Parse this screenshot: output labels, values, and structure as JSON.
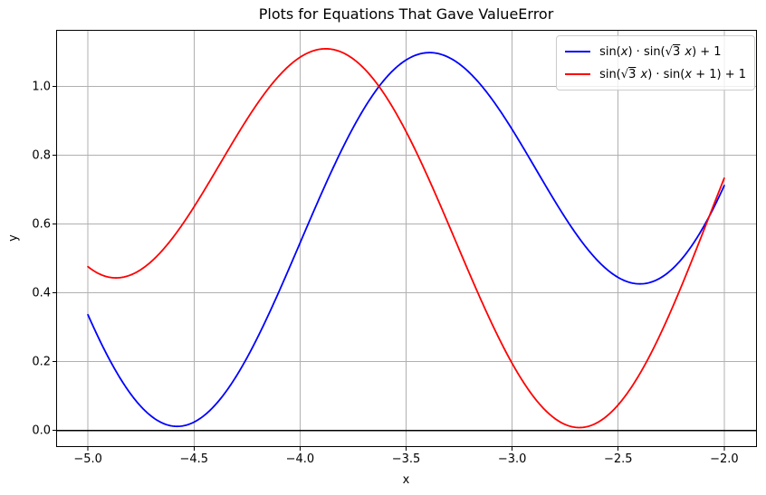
{
  "figure": {
    "background": "#ffffff",
    "text_color": "#000000"
  },
  "chart_data": {
    "type": "line",
    "title": "Plots for Equations That Gave ValueError",
    "xlabel": "x",
    "ylabel": "y",
    "xlim": [
      -5.15,
      -1.85
    ],
    "ylim": [
      -0.0456,
      1.1645
    ],
    "x_range_plotted": [
      -5.0,
      -2.0
    ],
    "grid": true,
    "grid_color": "#b0b0b0",
    "axis_color": "#000000",
    "zero_line": {
      "y": 0.0,
      "color": "#000000"
    },
    "x_ticks": [
      -5.0,
      -4.5,
      -4.0,
      -3.5,
      -3.0,
      -2.5,
      -2.0
    ],
    "x_tick_labels": [
      "−5.0",
      "−4.5",
      "−4.0",
      "−3.5",
      "−3.0",
      "−2.5",
      "−2.0"
    ],
    "y_ticks": [
      0.0,
      0.2,
      0.4,
      0.6,
      0.8,
      1.0
    ],
    "y_tick_labels": [
      "0.0",
      "0.2",
      "0.4",
      "0.6",
      "0.8",
      "1.0"
    ],
    "legend_position": "upper right",
    "series": [
      {
        "name": "sin(x) · sin(√3 x) + 1",
        "color": "#0000ff",
        "linewidth": 1.8,
        "fn": {
          "form": "sin(a1*x+c1)*sin(a2*x+c2)+k",
          "a1": 1,
          "c1": 0,
          "a2": 1.7320508,
          "c2": 0,
          "k": 1
        },
        "sample_points": {
          "x": [
            -5.0,
            -4.75,
            -4.5,
            -4.25,
            -4.0,
            -3.75,
            -3.5,
            -3.25,
            -3.0,
            -2.75,
            -2.5,
            -2.25,
            -2.0
          ],
          "y": [
            0.336,
            0.07,
            0.024,
            0.211,
            0.545,
            0.88,
            1.077,
            1.066,
            0.875,
            0.619,
            0.445,
            0.466,
            0.712
          ]
        }
      },
      {
        "name": "sin(√3 x) · sin(x + 1) + 1",
        "color": "#ff0000",
        "linewidth": 1.8,
        "fn": {
          "form": "sin(a1*x+c1)*sin(a2*x+c2)+k",
          "a1": 1.7320508,
          "c1": 0,
          "a2": 1,
          "c2": 1,
          "k": 1
        },
        "sample_points": {
          "x": [
            -5.0,
            -4.75,
            -4.5,
            -4.25,
            -4.0,
            -3.75,
            -3.5,
            -3.25,
            -3.0,
            -2.75,
            -2.5,
            -2.25,
            -2.0
          ],
          "y": [
            0.476,
            0.468,
            0.65,
            0.905,
            1.085,
            1.08,
            0.869,
            0.527,
            0.195,
            0.017,
            0.075,
            0.349,
            0.733
          ]
        }
      }
    ]
  }
}
